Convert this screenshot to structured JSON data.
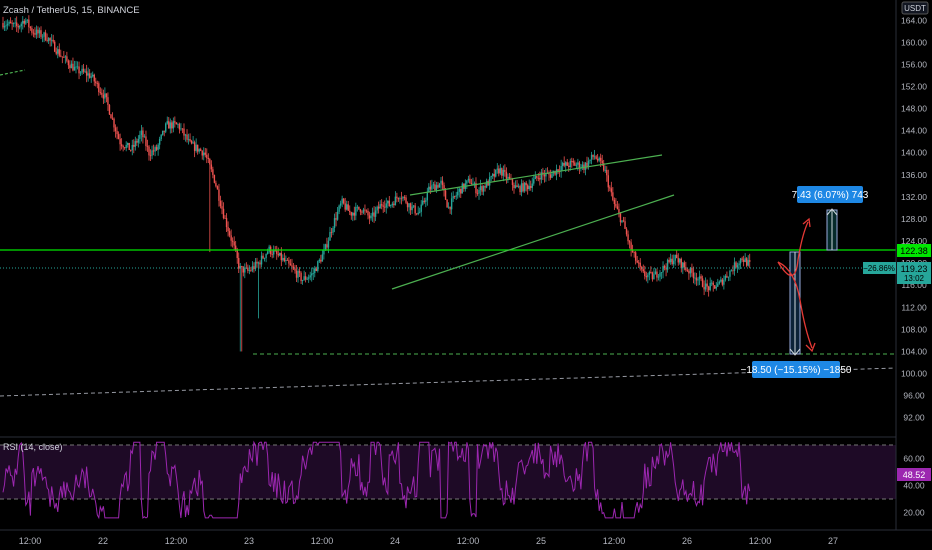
{
  "header": {
    "symbol_line": "Zcash / TetherUS, 15, BINANCE",
    "currency": "USDT",
    "rsi_label": "RSI (14, close)"
  },
  "colors": {
    "background": "#000000",
    "up": "#26a69a",
    "down": "#ef5350",
    "level_line": "#00e600",
    "pattern_lines": "#4caf50",
    "rsi_line": "#9c27b0",
    "rsi_band": "#2a0f33",
    "label_blue": "#2196f3",
    "price_badge": "#26a69a",
    "rsi_badge": "#9c27b0"
  },
  "price_axis": {
    "ticks": [
      "164.00",
      "160.00",
      "156.00",
      "152.00",
      "148.00",
      "144.00",
      "140.00",
      "136.00",
      "132.00",
      "128.00",
      "124.00",
      "120.00",
      "116.00",
      "112.00",
      "108.00",
      "104.00",
      "100.00",
      "96.00",
      "92.00"
    ],
    "level_badge": "122.38",
    "current_badge": "119.23",
    "countdown": "13:02"
  },
  "rsi_axis": {
    "ticks": [
      "60.00",
      "40.00",
      "20.00"
    ],
    "value_badge": "48.52"
  },
  "time_axis": {
    "ticks": [
      "12:00",
      "22",
      "12:00",
      "23",
      "12:00",
      "24",
      "12:00",
      "25",
      "12:00",
      "26",
      "12:00",
      "27"
    ]
  },
  "annotations": {
    "target_up": "7.43 (6.07%) 743",
    "target_down": "−18.50 (−15.15%) −1850",
    "percent_badge": "−26.86%"
  },
  "chart_data": {
    "type": "candlestick",
    "title": "Zcash / TetherUS, 15, BINANCE",
    "y_unit": "USDT",
    "ylim": [
      89,
      166
    ],
    "x_labels": [
      "12:00",
      "22",
      "12:00",
      "23",
      "12:00",
      "24",
      "12:00",
      "25",
      "12:00",
      "26",
      "12:00",
      "27"
    ],
    "waypoints": [
      [
        21.5,
        163.5
      ],
      [
        21.6,
        162.8
      ],
      [
        21.65,
        164.2
      ],
      [
        21.7,
        162.0
      ],
      [
        21.8,
        161.0
      ],
      [
        21.9,
        157.5
      ],
      [
        22.0,
        155.0
      ],
      [
        22.1,
        154.0
      ],
      [
        22.2,
        150.0
      ],
      [
        22.25,
        146.0
      ],
      [
        22.3,
        142.0
      ],
      [
        22.38,
        140.5
      ],
      [
        22.45,
        143.5
      ],
      [
        22.5,
        140.0
      ],
      [
        22.55,
        140.5
      ],
      [
        22.62,
        145.0
      ],
      [
        22.7,
        145.0
      ],
      [
        22.78,
        141.5
      ],
      [
        22.88,
        140.0
      ],
      [
        22.95,
        135.0
      ],
      [
        23.02,
        128.0
      ],
      [
        23.08,
        123.0
      ],
      [
        23.12,
        119.0
      ],
      [
        23.18,
        118.5
      ],
      [
        23.25,
        120.0
      ],
      [
        23.32,
        122.5
      ],
      [
        23.4,
        121.0
      ],
      [
        23.48,
        119.0
      ],
      [
        23.55,
        117.0
      ],
      [
        23.62,
        118.0
      ],
      [
        23.7,
        122.0
      ],
      [
        23.76,
        127.0
      ],
      [
        23.82,
        131.0
      ],
      [
        23.88,
        129.0
      ],
      [
        23.95,
        130.0
      ],
      [
        24.02,
        128.0
      ],
      [
        24.1,
        131.0
      ],
      [
        24.15,
        130.5
      ],
      [
        24.22,
        132.5
      ],
      [
        24.3,
        130.0
      ],
      [
        24.35,
        129.0
      ],
      [
        24.42,
        133.5
      ],
      [
        24.5,
        134.5
      ],
      [
        24.55,
        130.0
      ],
      [
        24.62,
        133.0
      ],
      [
        24.7,
        135.0
      ],
      [
        24.75,
        133.0
      ],
      [
        24.82,
        134.5
      ],
      [
        24.9,
        137.0
      ],
      [
        24.95,
        135.5
      ],
      [
        25.02,
        133.5
      ],
      [
        25.1,
        134.0
      ],
      [
        25.18,
        136.0
      ],
      [
        25.25,
        136.0
      ],
      [
        25.32,
        137.5
      ],
      [
        25.4,
        138.0
      ],
      [
        25.48,
        137.5
      ],
      [
        25.55,
        139.5
      ],
      [
        25.62,
        137.0
      ],
      [
        25.68,
        131.0
      ],
      [
        25.75,
        127.0
      ],
      [
        25.8,
        122.5
      ],
      [
        25.88,
        118.0
      ],
      [
        25.95,
        117.5
      ],
      [
        26.02,
        119.0
      ],
      [
        26.1,
        121.0
      ],
      [
        26.18,
        119.0
      ],
      [
        26.25,
        117.5
      ],
      [
        26.32,
        115.5
      ],
      [
        26.4,
        116.0
      ],
      [
        26.48,
        118.5
      ],
      [
        26.56,
        121.0
      ],
      [
        26.62,
        119.5
      ]
    ],
    "horizontal_levels": [
      {
        "value": 122.38,
        "style": "solid"
      },
      {
        "value": 119.23,
        "style": "dotted"
      },
      {
        "value": 104.0,
        "style": "dashed"
      }
    ],
    "indicator": {
      "name": "RSI (14, close)",
      "current": 48.52,
      "upper_band": 70,
      "lower_band": 30,
      "ylim": [
        15,
        75
      ]
    }
  }
}
